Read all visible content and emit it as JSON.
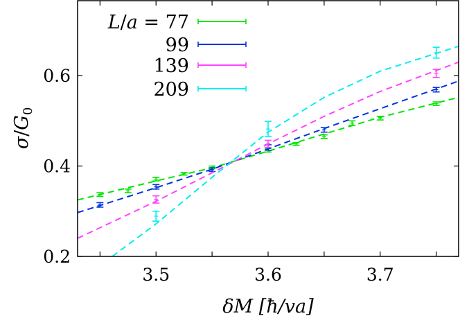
{
  "chart_data": {
    "type": "line",
    "title": "",
    "xlabel": "δM [ħ/va]",
    "ylabel": "σ/G₀",
    "xlim": [
      3.43,
      3.77
    ],
    "ylim": [
      0.2,
      0.766
    ],
    "x_ticks": [
      3.45,
      3.5,
      3.55,
      3.6,
      3.65,
      3.7,
      3.75
    ],
    "x_tick_labels": [
      "",
      "3.5",
      "",
      "3.6",
      "",
      "3.7",
      ""
    ],
    "y_ticks": [
      0.2,
      0.4,
      0.6
    ],
    "y_tick_labels": [
      "0.2",
      "0.4",
      "0.6"
    ],
    "grid": false,
    "legend_position": "upper left",
    "legend_title": "L/a =",
    "series": [
      {
        "name": "77",
        "color": "#00e600",
        "points": [
          {
            "x": 3.45,
            "y": 0.337,
            "err": 0.004
          },
          {
            "x": 3.475,
            "y": 0.345,
            "err": 0.004
          },
          {
            "x": 3.5,
            "y": 0.371,
            "err": 0.004
          },
          {
            "x": 3.525,
            "y": 0.383,
            "err": 0.003
          },
          {
            "x": 3.55,
            "y": 0.397,
            "err": 0.003
          },
          {
            "x": 3.6,
            "y": 0.435,
            "err": 0.004
          },
          {
            "x": 3.625,
            "y": 0.449,
            "err": 0.003
          },
          {
            "x": 3.65,
            "y": 0.465,
            "err": 0.004
          },
          {
            "x": 3.675,
            "y": 0.495,
            "err": 0.005
          },
          {
            "x": 3.7,
            "y": 0.506,
            "err": 0.004
          },
          {
            "x": 3.75,
            "y": 0.538,
            "err": 0.004
          }
        ],
        "fit": [
          [
            3.43,
            0.325
          ],
          [
            3.5,
            0.367
          ],
          [
            3.55,
            0.396
          ],
          [
            3.6,
            0.433
          ],
          [
            3.65,
            0.471
          ],
          [
            3.7,
            0.508
          ],
          [
            3.77,
            0.552
          ]
        ]
      },
      {
        "name": "99",
        "color": "#0033dd",
        "points": [
          {
            "x": 3.45,
            "y": 0.314,
            "err": 0.005
          },
          {
            "x": 3.5,
            "y": 0.354,
            "err": 0.005
          },
          {
            "x": 3.55,
            "y": 0.392,
            "err": 0.004
          },
          {
            "x": 3.6,
            "y": 0.441,
            "err": 0.006
          },
          {
            "x": 3.65,
            "y": 0.48,
            "err": 0.005
          },
          {
            "x": 3.75,
            "y": 0.569,
            "err": 0.005
          }
        ],
        "fit": [
          [
            3.43,
            0.297
          ],
          [
            3.5,
            0.352
          ],
          [
            3.55,
            0.393
          ],
          [
            3.6,
            0.438
          ],
          [
            3.65,
            0.483
          ],
          [
            3.7,
            0.527
          ],
          [
            3.77,
            0.588
          ]
        ]
      },
      {
        "name": "139",
        "color": "#ff44ff",
        "points": [
          {
            "x": 3.5,
            "y": 0.326,
            "err": 0.008
          },
          {
            "x": 3.6,
            "y": 0.449,
            "err": 0.008
          },
          {
            "x": 3.75,
            "y": 0.605,
            "err": 0.009
          }
        ],
        "fit": [
          [
            3.43,
            0.24
          ],
          [
            3.5,
            0.322
          ],
          [
            3.55,
            0.385
          ],
          [
            3.6,
            0.449
          ],
          [
            3.65,
            0.51
          ],
          [
            3.7,
            0.565
          ],
          [
            3.77,
            0.63
          ]
        ]
      },
      {
        "name": "209",
        "color": "#00eeee",
        "points": [
          {
            "x": 3.5,
            "y": 0.289,
            "err": 0.011
          },
          {
            "x": 3.6,
            "y": 0.482,
            "err": 0.017
          },
          {
            "x": 3.75,
            "y": 0.651,
            "err": 0.012
          }
        ],
        "fit": [
          [
            3.461,
            0.2
          ],
          [
            3.5,
            0.272
          ],
          [
            3.55,
            0.375
          ],
          [
            3.6,
            0.475
          ],
          [
            3.65,
            0.552
          ],
          [
            3.7,
            0.61
          ],
          [
            3.77,
            0.665
          ]
        ]
      }
    ]
  },
  "axes": {
    "ylabel_main": "σ",
    "ylabel_sep": "/",
    "ylabel_sym": "G",
    "ylabel_sub": "0",
    "xlabel": "δM [ħ/va]"
  },
  "legend": {
    "title": "L/a = 77",
    "entries": [
      "77",
      "99",
      "139",
      "209"
    ]
  }
}
